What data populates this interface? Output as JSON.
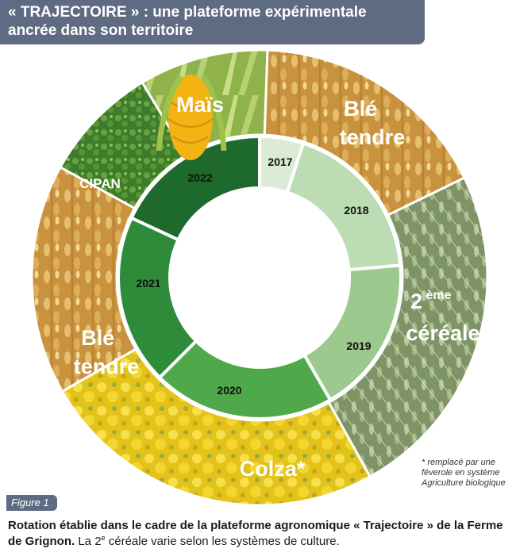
{
  "header": {
    "title": "« TRAJECTOIRE » : une plateforme expérimentale ancrée dans son territoire"
  },
  "outer_ring": {
    "mais": "Maïs",
    "ble_tendre_1": [
      "Blé",
      "tendre"
    ],
    "deuxieme_cereale": {
      "base": "2",
      "sup": "ème",
      "word": "céréale"
    },
    "colza": "Colza*",
    "ble_tendre_2": [
      "Blé",
      "tendre"
    ],
    "cipan": "CIPAN"
  },
  "inner_ring": {
    "years": [
      "2017",
      "2018",
      "2019",
      "2020",
      "2021",
      "2022"
    ],
    "colors": [
      "#dcebd5",
      "#bcdcb3",
      "#9cc98e",
      "#4fa84a",
      "#2e8b3a",
      "#1d6a2c"
    ]
  },
  "footnote": "* remplacé par une féverole en système Agriculture biologique",
  "figure_label": "Figure 1",
  "caption": {
    "bold": "Rotation établie dans le cadre de la plateforme agronomique « Trajectoire » de la Ferme de Grignon.",
    "normal_pre": " La 2",
    "sup": "e",
    "normal_post": " céréale varie selon les systèmes de culture."
  }
}
